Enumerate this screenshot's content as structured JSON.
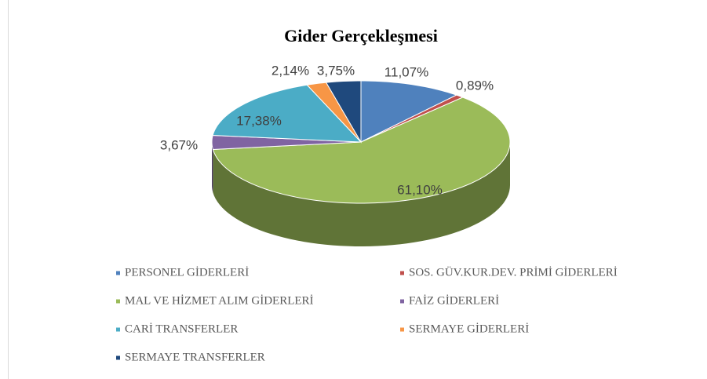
{
  "chart_data": {
    "type": "pie3d",
    "title": "Gider Gerçekleşmesi",
    "categories": [
      "PERSONEL GİDERLERİ",
      "SOS. GÜV.KUR.DEV. PRİMİ GİDERLERİ",
      "MAL VE HİZMET ALIM GİDERLERİ",
      "FAİZ GİDERLERİ",
      "CARİ TRANSFERLER",
      "SERMAYE GİDERLERİ",
      "SERMAYE TRANSFERLER"
    ],
    "values": [
      11.07,
      0.89,
      61.1,
      3.67,
      17.38,
      2.14,
      3.75
    ],
    "value_labels": [
      "11,07%",
      "0,89%",
      "61,10%",
      "3,67%",
      "17,38%",
      "2,14%",
      "3,75%"
    ],
    "colors": [
      "#4f81bd",
      "#c0504d",
      "#9bbb59",
      "#8064a2",
      "#4bacc6",
      "#f79646",
      "#1f497d"
    ],
    "legend": "bottom"
  }
}
